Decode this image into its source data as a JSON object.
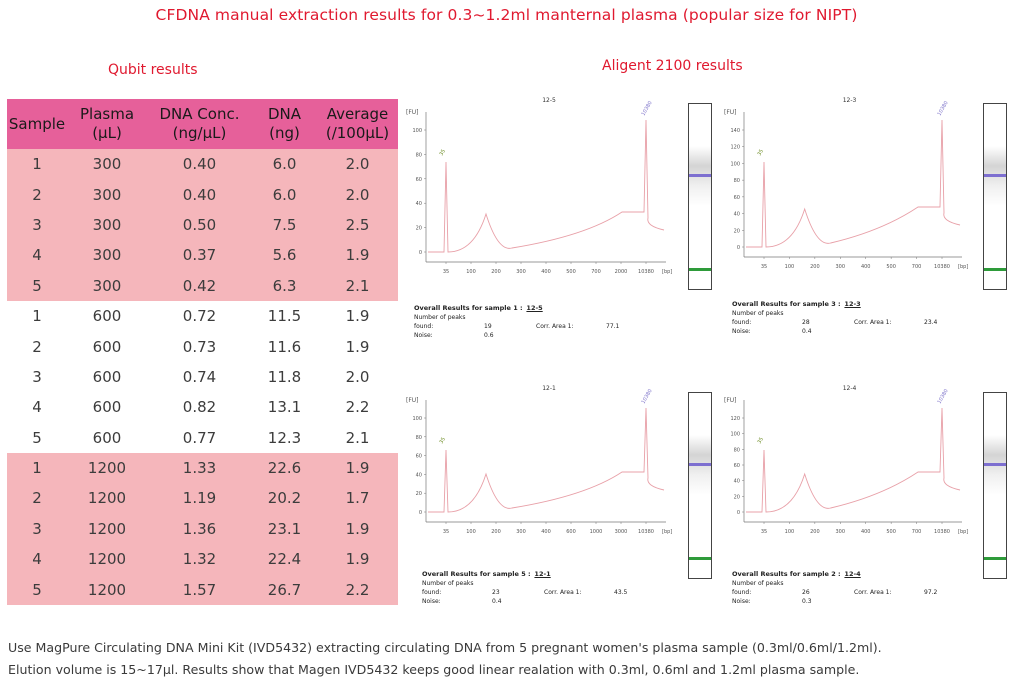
{
  "title": "CFDNA manual extraction results for 0.3~1.2ml manternal plasma  (popular size for NIPT)",
  "qubit_heading": "Qubit results",
  "agilent_heading": "Aligent 2100  results",
  "table": {
    "headers": [
      [
        "Sample",
        ""
      ],
      [
        "Plasma",
        "(μL)"
      ],
      [
        "DNA Conc.",
        "(ng/μL)"
      ],
      [
        "DNA",
        "(ng)"
      ],
      [
        "Average",
        "(/100μL)"
      ]
    ],
    "rows": [
      [
        "1",
        "300",
        "0.40",
        "6.0",
        "2.0"
      ],
      [
        "2",
        "300",
        "0.40",
        "6.0",
        "2.0"
      ],
      [
        "3",
        "300",
        "0.50",
        "7.5",
        "2.5"
      ],
      [
        "4",
        "300",
        "0.37",
        "5.6",
        "1.9"
      ],
      [
        "5",
        "300",
        "0.42",
        "6.3",
        "2.1"
      ],
      [
        "1",
        "600",
        "0.72",
        "11.5",
        "1.9"
      ],
      [
        "2",
        "600",
        "0.73",
        "11.6",
        "1.9"
      ],
      [
        "3",
        "600",
        "0.74",
        "11.8",
        "2.0"
      ],
      [
        "4",
        "600",
        "0.82",
        "13.1",
        "2.2"
      ],
      [
        "5",
        "600",
        "0.77",
        "12.3",
        "2.1"
      ],
      [
        "1",
        "1200",
        "1.33",
        "22.6",
        "1.9"
      ],
      [
        "2",
        "1200",
        "1.19",
        "20.2",
        "1.7"
      ],
      [
        "3",
        "1200",
        "1.36",
        "23.1",
        "1.9"
      ],
      [
        "4",
        "1200",
        "1.32",
        "22.4",
        "1.9"
      ],
      [
        "5",
        "1200",
        "1.57",
        "26.7",
        "2.2"
      ]
    ],
    "row_groups": [
      "pink",
      "pink",
      "pink",
      "pink",
      "pink",
      "white",
      "white",
      "white",
      "white",
      "white",
      "pink",
      "pink",
      "pink",
      "pink",
      "pink"
    ]
  },
  "chart_data": [
    {
      "type": "line",
      "title": "12-5",
      "ylabel": "[FU]",
      "xlabel": "[bp]",
      "yticks": [
        "0",
        "20",
        "40",
        "60",
        "80",
        "100"
      ],
      "xticks": [
        "35",
        "100",
        "200",
        "300",
        "400",
        "500",
        "700",
        "2000",
        "10380"
      ],
      "marker_labels": [
        "35",
        "10380"
      ],
      "peaks_label": "Overall Results for sample 1 :",
      "sample_id": "12-5",
      "rows": [
        [
          "Number of peaks found:",
          "19",
          "Corr. Area 1:",
          "77.1"
        ],
        [
          "Noise:",
          "0.6",
          "",
          ""
        ]
      ]
    },
    {
      "type": "line",
      "title": "12-3",
      "ylabel": "[FU]",
      "xlabel": "[bp]",
      "yticks": [
        "0",
        "20",
        "40",
        "60",
        "80",
        "100",
        "120",
        "140"
      ],
      "xticks": [
        "35",
        "100",
        "200",
        "300",
        "400",
        "500",
        "700",
        "10380"
      ],
      "marker_labels": [
        "35",
        "10380"
      ],
      "peaks_label": "Overall Results for sample 3 :",
      "sample_id": "12-3",
      "rows": [
        [
          "Number of peaks found:",
          "28",
          "Corr. Area 1:",
          "23.4"
        ],
        [
          "Noise:",
          "0.4",
          "",
          ""
        ]
      ]
    },
    {
      "type": "line",
      "title": "12-1",
      "ylabel": "[FU]",
      "xlabel": "[bp]",
      "yticks": [
        "0",
        "20",
        "40",
        "60",
        "80",
        "100"
      ],
      "xticks": [
        "35",
        "100",
        "200",
        "300",
        "400",
        "600",
        "1000",
        "3000",
        "10380"
      ],
      "marker_labels": [
        "35",
        "10380"
      ],
      "peaks_label": "Overall Results for sample 5 :",
      "sample_id": "12-1",
      "rows": [
        [
          "Number of peaks found:",
          "23",
          "Corr. Area 1:",
          "43.5"
        ],
        [
          "Noise:",
          "0.4",
          "",
          ""
        ]
      ]
    },
    {
      "type": "line",
      "title": "12-4",
      "ylabel": "[FU]",
      "xlabel": "[bp]",
      "yticks": [
        "0",
        "20",
        "40",
        "60",
        "80",
        "100",
        "120"
      ],
      "xticks": [
        "35",
        "100",
        "200",
        "300",
        "400",
        "500",
        "700",
        "10380"
      ],
      "marker_labels": [
        "35",
        "10380"
      ],
      "peaks_label": "Overall Results for sample 2 :",
      "sample_id": "12-4",
      "rows": [
        [
          "Number of peaks found:",
          "26",
          "Corr. Area 1:",
          "97.2"
        ],
        [
          "Noise:",
          "0.3",
          "",
          ""
        ]
      ]
    }
  ],
  "footer": {
    "line1": "Use MagPure Circulating DNA Mini Kit (IVD5432) extracting circulating DNA from 5 pregnant women's plasma sample (0.3ml/0.6ml/1.2ml).",
    "line2": "Elution volume is 15~17μl. Results show that Magen IVD5432 keeps good linear realation with 0.3ml, 0.6ml and 1.2ml plasma sample."
  },
  "colors": {
    "title": "#e0192f",
    "header": "#e6609a",
    "pink_row": "#f5b6bb",
    "trace": "#e8a0a8",
    "marker": "#7a6fc8"
  }
}
